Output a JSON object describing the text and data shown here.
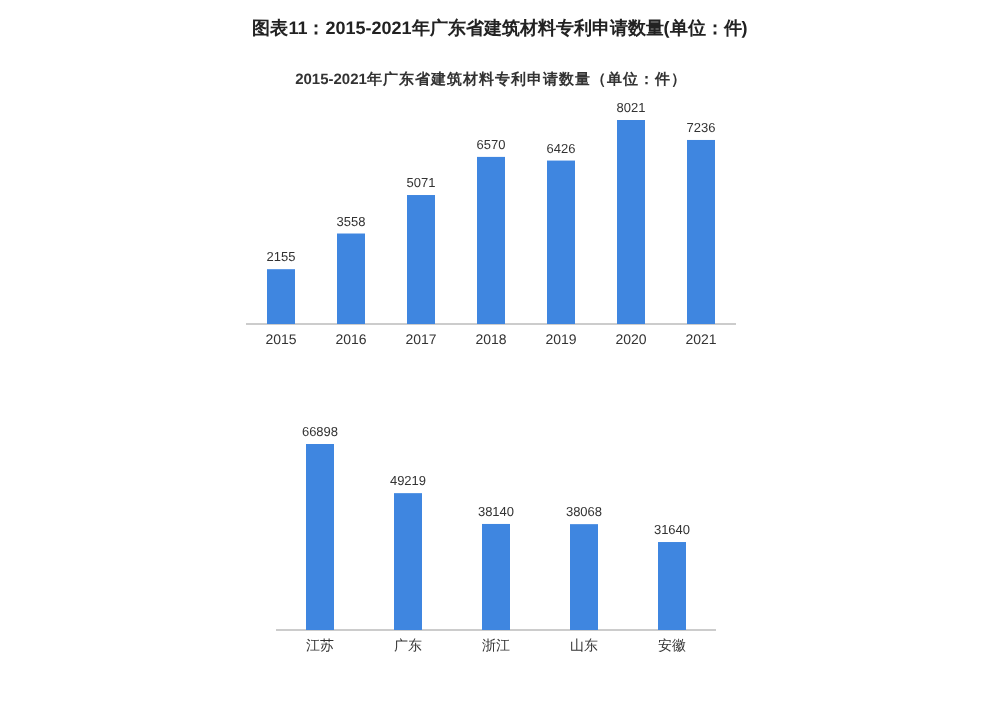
{
  "chart_data": [
    {
      "type": "bar",
      "title": "图表11：2015-2021年广东省建筑材料专利申请数量(单位：件)",
      "subtitle": "2015-2021年广东省建筑材料专利申请数量（单位：件）",
      "categories": [
        "2015",
        "2016",
        "2017",
        "2018",
        "2019",
        "2020",
        "2021"
      ],
      "values": [
        2155,
        3558,
        5071,
        6570,
        6426,
        8021,
        7236
      ],
      "color": "#3f86e0",
      "data_labels": true
    },
    {
      "type": "bar",
      "categories": [
        "江苏",
        "广东",
        "浙江",
        "山东",
        "安徽"
      ],
      "values": [
        66898,
        49219,
        38140,
        38068,
        31640
      ],
      "color": "#3f86e0",
      "data_labels": true
    }
  ]
}
